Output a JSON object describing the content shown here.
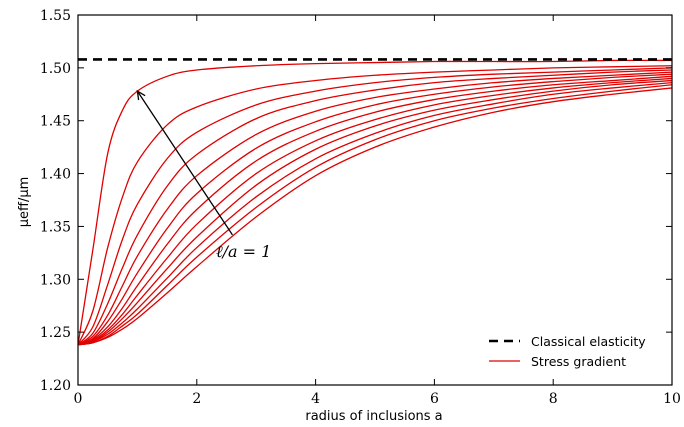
{
  "chart_data": {
    "type": "line",
    "xlabel": "radius of inclusions a",
    "ylabel": "μeff/μm",
    "xlim": [
      0,
      10
    ],
    "ylim": [
      1.2,
      1.55
    ],
    "x_ticks": [
      "0",
      "2",
      "4",
      "6",
      "8",
      "10"
    ],
    "y_ticks": [
      "1.20",
      "1.25",
      "1.30",
      "1.35",
      "1.40",
      "1.45",
      "1.50",
      "1.55"
    ],
    "grid": false,
    "legend_position": "bottom-right",
    "annotation": "ℓ/a = 1",
    "colors": {
      "classical": "#000000",
      "stress_gradient": "#e00000"
    },
    "legend": [
      {
        "label": "Classical elasticity",
        "style": "dashed",
        "color": "#000000"
      },
      {
        "label": "Stress gradient",
        "style": "solid",
        "color": "#e00000"
      }
    ],
    "classical": {
      "name": "Classical elasticity",
      "value": 1.508
    },
    "stress_gradient": {
      "name": "Stress gradient",
      "y0": 1.238,
      "x": [
        0,
        0.25,
        0.5,
        0.75,
        1,
        1.5,
        2,
        3,
        4,
        5,
        6,
        7,
        8,
        9,
        10
      ],
      "series": [
        {
          "values": [
            1.238,
            1.328,
            1.419,
            1.46,
            1.478,
            1.492,
            1.498,
            1.502,
            1.504,
            1.505,
            1.506,
            1.506,
            1.506,
            1.507,
            1.507
          ]
        },
        {
          "values": [
            1.238,
            1.27,
            1.33,
            1.378,
            1.411,
            1.446,
            1.463,
            1.48,
            1.488,
            1.493,
            1.496,
            1.498,
            1.5,
            1.501,
            1.502
          ]
        },
        {
          "values": [
            1.238,
            1.255,
            1.295,
            1.338,
            1.371,
            1.414,
            1.439,
            1.465,
            1.478,
            1.486,
            1.491,
            1.494,
            1.496,
            1.498,
            1.5
          ]
        },
        {
          "values": [
            1.238,
            1.249,
            1.277,
            1.311,
            1.342,
            1.388,
            1.418,
            1.452,
            1.469,
            1.479,
            1.486,
            1.49,
            1.493,
            1.496,
            1.498
          ]
        },
        {
          "values": [
            1.238,
            1.246,
            1.266,
            1.294,
            1.322,
            1.366,
            1.398,
            1.437,
            1.459,
            1.472,
            1.48,
            1.486,
            1.49,
            1.493,
            1.496
          ]
        },
        {
          "values": [
            1.238,
            1.244,
            1.26,
            1.282,
            1.306,
            1.348,
            1.381,
            1.424,
            1.449,
            1.465,
            1.475,
            1.482,
            1.487,
            1.491,
            1.494
          ]
        },
        {
          "values": [
            1.238,
            1.243,
            1.255,
            1.273,
            1.294,
            1.333,
            1.366,
            1.412,
            1.44,
            1.458,
            1.47,
            1.478,
            1.484,
            1.488,
            1.492
          ]
        },
        {
          "values": [
            1.238,
            1.242,
            1.252,
            1.267,
            1.285,
            1.32,
            1.352,
            1.4,
            1.431,
            1.451,
            1.465,
            1.474,
            1.481,
            1.486,
            1.49
          ]
        },
        {
          "values": [
            1.238,
            1.241,
            1.25,
            1.263,
            1.278,
            1.31,
            1.34,
            1.389,
            1.423,
            1.445,
            1.46,
            1.47,
            1.478,
            1.484,
            1.488
          ]
        },
        {
          "values": [
            1.238,
            1.241,
            1.248,
            1.259,
            1.272,
            1.301,
            1.33,
            1.378,
            1.414,
            1.438,
            1.455,
            1.466,
            1.475,
            1.481,
            1.486
          ]
        },
        {
          "values": [
            1.238,
            1.24,
            1.246,
            1.256,
            1.267,
            1.294,
            1.321,
            1.368,
            1.406,
            1.432,
            1.45,
            1.462,
            1.471,
            1.478,
            1.484
          ]
        },
        {
          "values": [
            1.238,
            1.24,
            1.245,
            1.253,
            1.263,
            1.287,
            1.312,
            1.359,
            1.398,
            1.425,
            1.444,
            1.458,
            1.468,
            1.475,
            1.481
          ]
        }
      ]
    },
    "arrow": {
      "from": [
        2.6,
        1.342
      ],
      "to": [
        1.0,
        1.478
      ]
    }
  }
}
